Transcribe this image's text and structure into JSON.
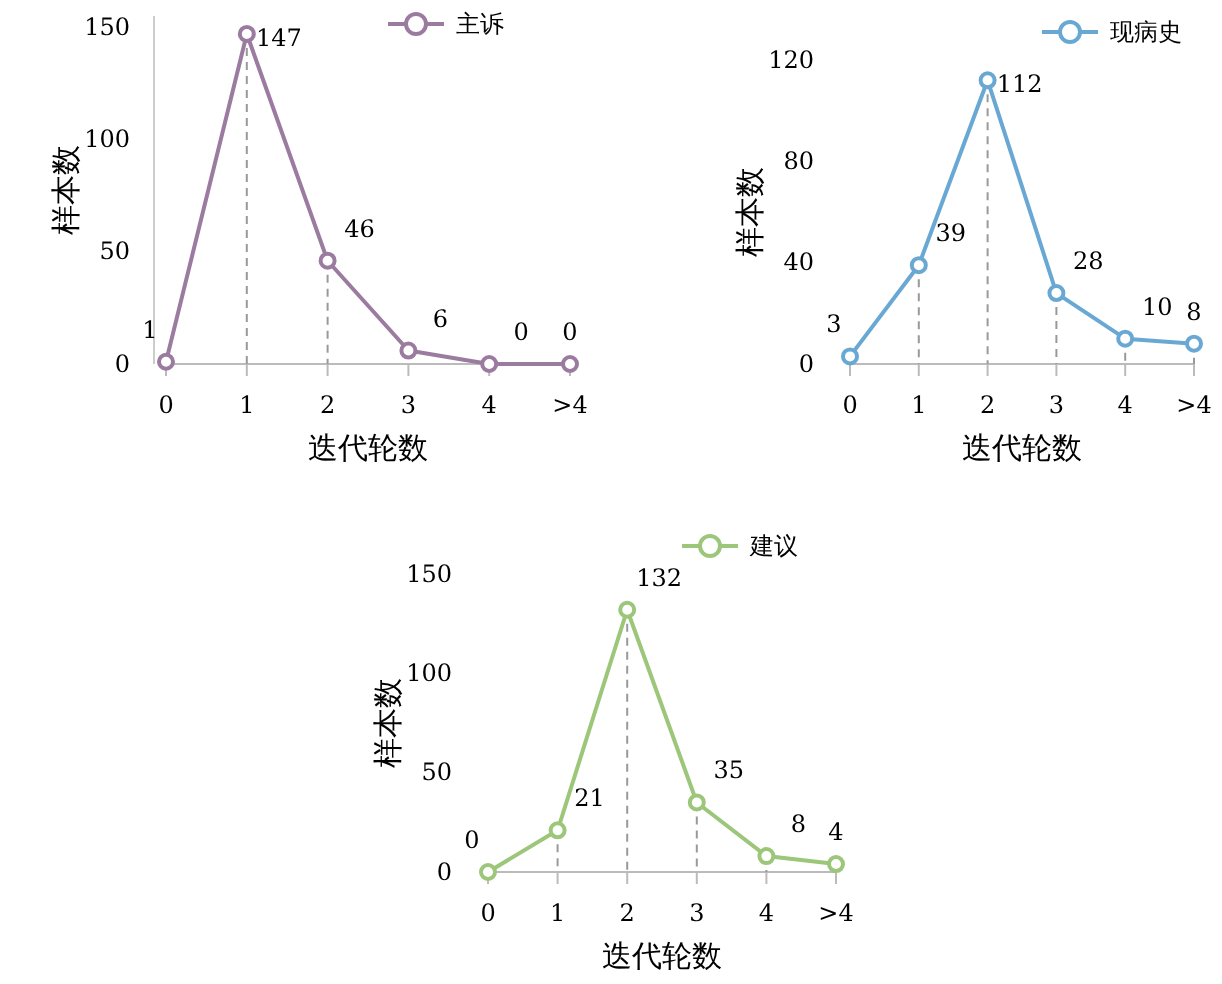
{
  "chart_data": [
    {
      "type": "line",
      "xlabel": "迭代轮数",
      "ylabel": "样本数",
      "categories": [
        "0",
        "1",
        "2",
        "3",
        "4",
        ">4"
      ],
      "series": [
        {
          "name": "主诉",
          "color": "#9b7ba0",
          "values": [
            1,
            147,
            46,
            6,
            0,
            0
          ]
        }
      ],
      "ylim": [
        0,
        155
      ],
      "yticks": [
        0,
        50,
        100,
        150
      ],
      "data_labels": true,
      "legend": "top",
      "marker": "circle",
      "grid": "x"
    },
    {
      "type": "line",
      "xlabel": "迭代轮数",
      "ylabel": "样本数",
      "categories": [
        "0",
        "1",
        "2",
        "3",
        "4",
        ">4"
      ],
      "series": [
        {
          "name": "现病史",
          "color": "#6aa8d4",
          "values": [
            3,
            39,
            112,
            28,
            10,
            8
          ]
        }
      ],
      "ylim": [
        0,
        120
      ],
      "yticks": [
        0,
        40,
        80,
        120
      ],
      "data_labels": true,
      "legend": "top",
      "marker": "circle",
      "grid": "x"
    },
    {
      "type": "line",
      "xlabel": "迭代轮数",
      "ylabel": "样本数",
      "categories": [
        "0",
        "1",
        "2",
        "3",
        "4",
        ">4"
      ],
      "series": [
        {
          "name": "建议",
          "color": "#9cc67a",
          "values": [
            0,
            21,
            132,
            35,
            8,
            4
          ]
        }
      ],
      "ylim": [
        0,
        150
      ],
      "yticks": [
        0,
        50,
        100,
        150
      ],
      "data_labels": true,
      "legend": "top",
      "marker": "circle",
      "grid": "x"
    }
  ]
}
